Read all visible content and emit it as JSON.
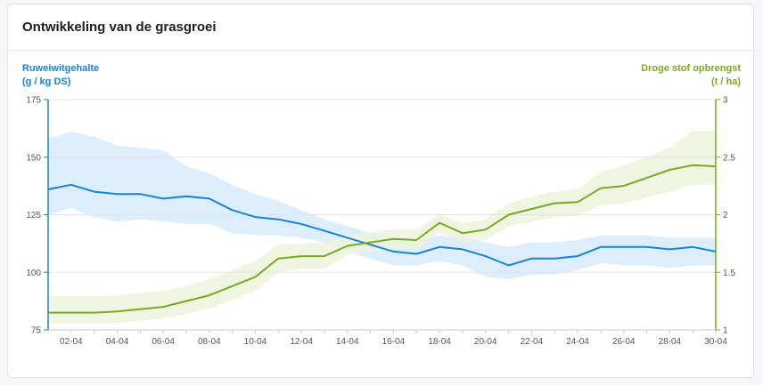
{
  "card": {
    "title": "Ontwikkeling van de grasgroei"
  },
  "colors": {
    "left_axis": "#1a82d6",
    "right_axis": "#79a920",
    "blue_band": "#d6eafb",
    "green_band": "#ecf3dc",
    "grid": "#e3e3e3"
  },
  "chart_data": {
    "type": "line",
    "title": "Ontwikkeling van de grasgroei",
    "x": [
      "01-04",
      "02-04",
      "03-04",
      "04-04",
      "05-04",
      "06-04",
      "07-04",
      "08-04",
      "09-04",
      "10-04",
      "11-04",
      "12-04",
      "13-04",
      "14-04",
      "15-04",
      "16-04",
      "17-04",
      "18-04",
      "19-04",
      "20-04",
      "21-04",
      "22-04",
      "23-04",
      "24-04",
      "25-04",
      "26-04",
      "27-04",
      "28-04",
      "29-04",
      "30-04"
    ],
    "x_tick_labels": [
      "02-04",
      "04-04",
      "06-04",
      "08-04",
      "10-04",
      "12-04",
      "14-04",
      "16-04",
      "18-04",
      "20-04",
      "22-04",
      "24-04",
      "26-04",
      "28-04",
      "30-04"
    ],
    "y_left": {
      "label_line1": "Ruweiwitgehalte",
      "label_line2": "(g / kg DS)",
      "range": [
        75,
        175
      ],
      "ticks": [
        "75",
        "100",
        "125",
        "150",
        "175"
      ]
    },
    "y_right": {
      "label_line1": "Droge stof opbrengst",
      "label_line2": "(t / ha)",
      "range": [
        1,
        3
      ],
      "ticks": [
        "1",
        "1.5",
        "2",
        "2.5",
        "3"
      ]
    },
    "series": [
      {
        "name": "Ruweiwitgehalte",
        "axis": "left",
        "values": [
          136,
          138,
          135,
          134,
          134,
          132,
          133,
          132,
          127,
          124,
          123,
          121,
          118,
          115,
          112,
          109,
          108,
          111,
          110,
          107,
          103,
          106,
          106,
          107,
          111,
          111,
          111,
          110,
          111,
          109
        ],
        "band_upper": [
          158,
          161,
          159,
          155,
          154,
          153,
          146,
          143,
          138,
          134,
          131,
          127,
          123,
          120,
          117,
          115,
          114,
          116,
          115,
          113,
          111,
          113,
          113,
          114,
          116,
          116,
          116,
          115,
          115,
          115
        ],
        "band_lower": [
          125,
          128,
          124,
          122,
          123,
          122,
          121,
          121,
          117,
          116,
          116,
          115,
          113,
          109,
          106,
          103,
          103,
          105,
          103,
          98,
          97,
          99,
          99,
          101,
          104,
          103,
          103,
          102,
          103,
          103
        ]
      },
      {
        "name": "Droge stof opbrengst",
        "axis": "right",
        "values": [
          1.15,
          1.15,
          1.15,
          1.16,
          1.18,
          1.2,
          1.25,
          1.3,
          1.38,
          1.46,
          1.62,
          1.64,
          1.64,
          1.73,
          1.76,
          1.79,
          1.78,
          1.93,
          1.84,
          1.87,
          2.0,
          2.05,
          2.1,
          2.11,
          2.23,
          2.25,
          2.32,
          2.39,
          2.43,
          2.42
        ],
        "band_upper": [
          1.29,
          1.29,
          1.29,
          1.3,
          1.32,
          1.34,
          1.38,
          1.44,
          1.52,
          1.6,
          1.74,
          1.75,
          1.76,
          1.82,
          1.85,
          1.87,
          1.87,
          2.0,
          1.93,
          1.96,
          2.1,
          2.16,
          2.2,
          2.22,
          2.37,
          2.43,
          2.5,
          2.58,
          2.73,
          2.73
        ],
        "band_lower": [
          1.06,
          1.06,
          1.06,
          1.06,
          1.08,
          1.1,
          1.14,
          1.18,
          1.26,
          1.34,
          1.5,
          1.53,
          1.53,
          1.65,
          1.68,
          1.7,
          1.7,
          1.85,
          1.76,
          1.78,
          1.9,
          1.94,
          1.98,
          1.99,
          2.08,
          2.1,
          2.15,
          2.2,
          2.26,
          2.26
        ]
      }
    ]
  }
}
